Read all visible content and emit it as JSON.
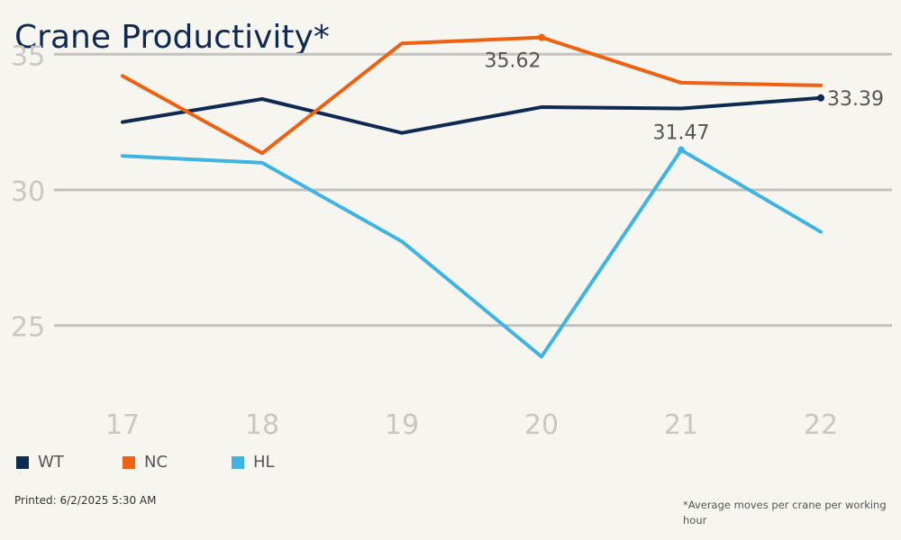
{
  "title": "Crane Productivity*",
  "printed": "Printed: 6/2/2025 5:30 AM",
  "footnote": "*Average moves per crane per working hour",
  "colors": {
    "background": "#f7f5ef",
    "gridline": "#c3c1bd",
    "tick_label": "#c9c7c2",
    "WT": "#0f2a52",
    "NC": "#ee6112",
    "HL": "#3db4e2"
  },
  "chart_data": {
    "type": "line",
    "title": "Crane Productivity*",
    "categories": [
      "17",
      "18",
      "19",
      "20",
      "21",
      "22"
    ],
    "y_ticks": [
      "25",
      "30",
      "35"
    ],
    "ylim": [
      22.4,
      37
    ],
    "grid": true,
    "legend_position": "bottom-left",
    "series": [
      {
        "name": "WT",
        "color": "#0f2a52",
        "values": [
          32.5,
          33.35,
          32.1,
          33.05,
          33.0,
          33.39
        ]
      },
      {
        "name": "NC",
        "color": "#ee6112",
        "values": [
          34.2,
          31.35,
          35.4,
          35.62,
          33.95,
          33.85
        ]
      },
      {
        "name": "HL",
        "color": "#3db4e2",
        "values": [
          31.25,
          31.0,
          28.1,
          23.85,
          31.47,
          28.45
        ]
      }
    ],
    "annotations": [
      {
        "series": "NC",
        "index": 3,
        "label": "35.62",
        "placement": "below"
      },
      {
        "series": "HL",
        "index": 4,
        "label": "31.47",
        "placement": "above"
      },
      {
        "series": "WT",
        "index": 5,
        "label": "33.39",
        "placement": "right"
      }
    ]
  }
}
